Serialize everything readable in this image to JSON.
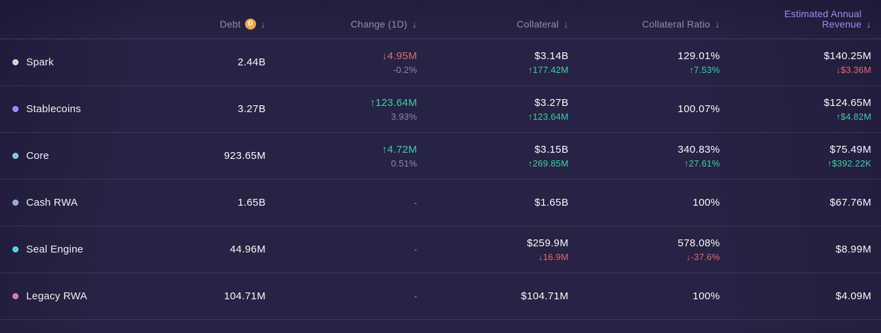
{
  "colors": {
    "background": "#272344",
    "positive": "#3fd0a5",
    "negative": "#e8696e",
    "muted_sub": "#8e89b4",
    "header_default": "#918dad",
    "header_active": "#a58bf0",
    "coin": "#f0a73d"
  },
  "header": {
    "columns": [
      {
        "label": "Debt",
        "sort_icon": "↓",
        "coin_glyph": "Ð"
      },
      {
        "label": "Change (1D)",
        "sort_icon": "↓"
      },
      {
        "label": "Collateral",
        "sort_icon": "↓"
      },
      {
        "label": "Collateral Ratio",
        "sort_icon": "↓"
      },
      {
        "label": "Estimated Annual Revenue",
        "sort_icon": "↓",
        "active": true
      }
    ]
  },
  "rows": [
    {
      "name": "Spark",
      "ring_color": "#ded8cc",
      "debt": "2.44B",
      "change_main": "↓4.95M",
      "change_sub": "-0.2%",
      "collateral_main": "$3.14B",
      "collateral_sub": "↑177.42M",
      "ratio_main": "129.01%",
      "ratio_sub": "↑7.53%",
      "revenue_main": "$140.25M",
      "revenue_sub": "↓$3.36M"
    },
    {
      "name": "Stablecoins",
      "ring_color": "#a78bfa",
      "debt": "3.27B",
      "change_main": "↑123.64M",
      "change_sub": "3.93%",
      "collateral_main": "$3.27B",
      "collateral_sub": "↑123.64M",
      "ratio_main": "100.07%",
      "revenue_main": "$124.65M",
      "revenue_sub": "↑$4.82M"
    },
    {
      "name": "Core",
      "ring_color": "#85cbe8",
      "debt": "923.65M",
      "change_main": "↑4.72M",
      "change_sub": "0.51%",
      "collateral_main": "$3.15B",
      "collateral_sub": "↑269.85M",
      "ratio_main": "340.83%",
      "ratio_sub": "↑27.61%",
      "revenue_main": "$75.49M",
      "revenue_sub": "↑$392.22K"
    },
    {
      "name": "Cash RWA",
      "ring_color": "#a3aae6",
      "debt": "1.65B",
      "change_main": "-",
      "collateral_main": "$1.65B",
      "ratio_main": "100%",
      "revenue_main": "$67.76M"
    },
    {
      "name": "Seal Engine",
      "ring_color": "#58d5de",
      "debt": "44.96M",
      "change_main": "-",
      "collateral_main": "$259.9M",
      "collateral_sub": "↓16.9M",
      "ratio_main": "578.08%",
      "ratio_sub": "↓-37.6%",
      "revenue_main": "$8.99M"
    },
    {
      "name": "Legacy RWA",
      "ring_color": "#d778c8",
      "debt": "104.71M",
      "change_main": "-",
      "collateral_main": "$104.71M",
      "ratio_main": "100%",
      "revenue_main": "$4.09M"
    }
  ]
}
